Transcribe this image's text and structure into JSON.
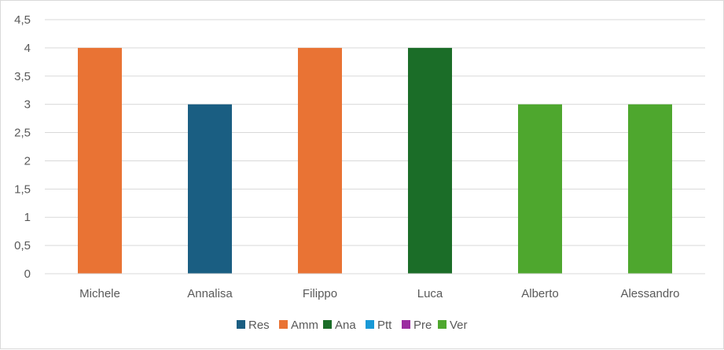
{
  "chart_data": {
    "type": "bar",
    "title": "",
    "xlabel": "",
    "ylabel": "",
    "categories": [
      "Michele",
      "Annalisa",
      "Filippo",
      "Luca",
      "Alberto",
      "Alessandro"
    ],
    "values": [
      4,
      3,
      4,
      4,
      3,
      3
    ],
    "bar_series": [
      "Amm",
      "Res",
      "Amm",
      "Ana",
      "Ver",
      "Ver"
    ],
    "ylim": [
      0,
      4.5
    ],
    "yticks": [
      "0",
      "0,5",
      "1",
      "1,5",
      "2",
      "2,5",
      "3",
      "3,5",
      "4",
      "4,5"
    ],
    "grid": true,
    "legend_position": "bottom",
    "legend": [
      {
        "name": "Res",
        "color": "#1a5e82"
      },
      {
        "name": "Amm",
        "color": "#e97334"
      },
      {
        "name": "Ana",
        "color": "#1b6d28"
      },
      {
        "name": "Ptt",
        "color": "#1899d6"
      },
      {
        "name": "Pre",
        "color": "#9b2da0"
      },
      {
        "name": "Ver",
        "color": "#4ea72e"
      }
    ]
  }
}
